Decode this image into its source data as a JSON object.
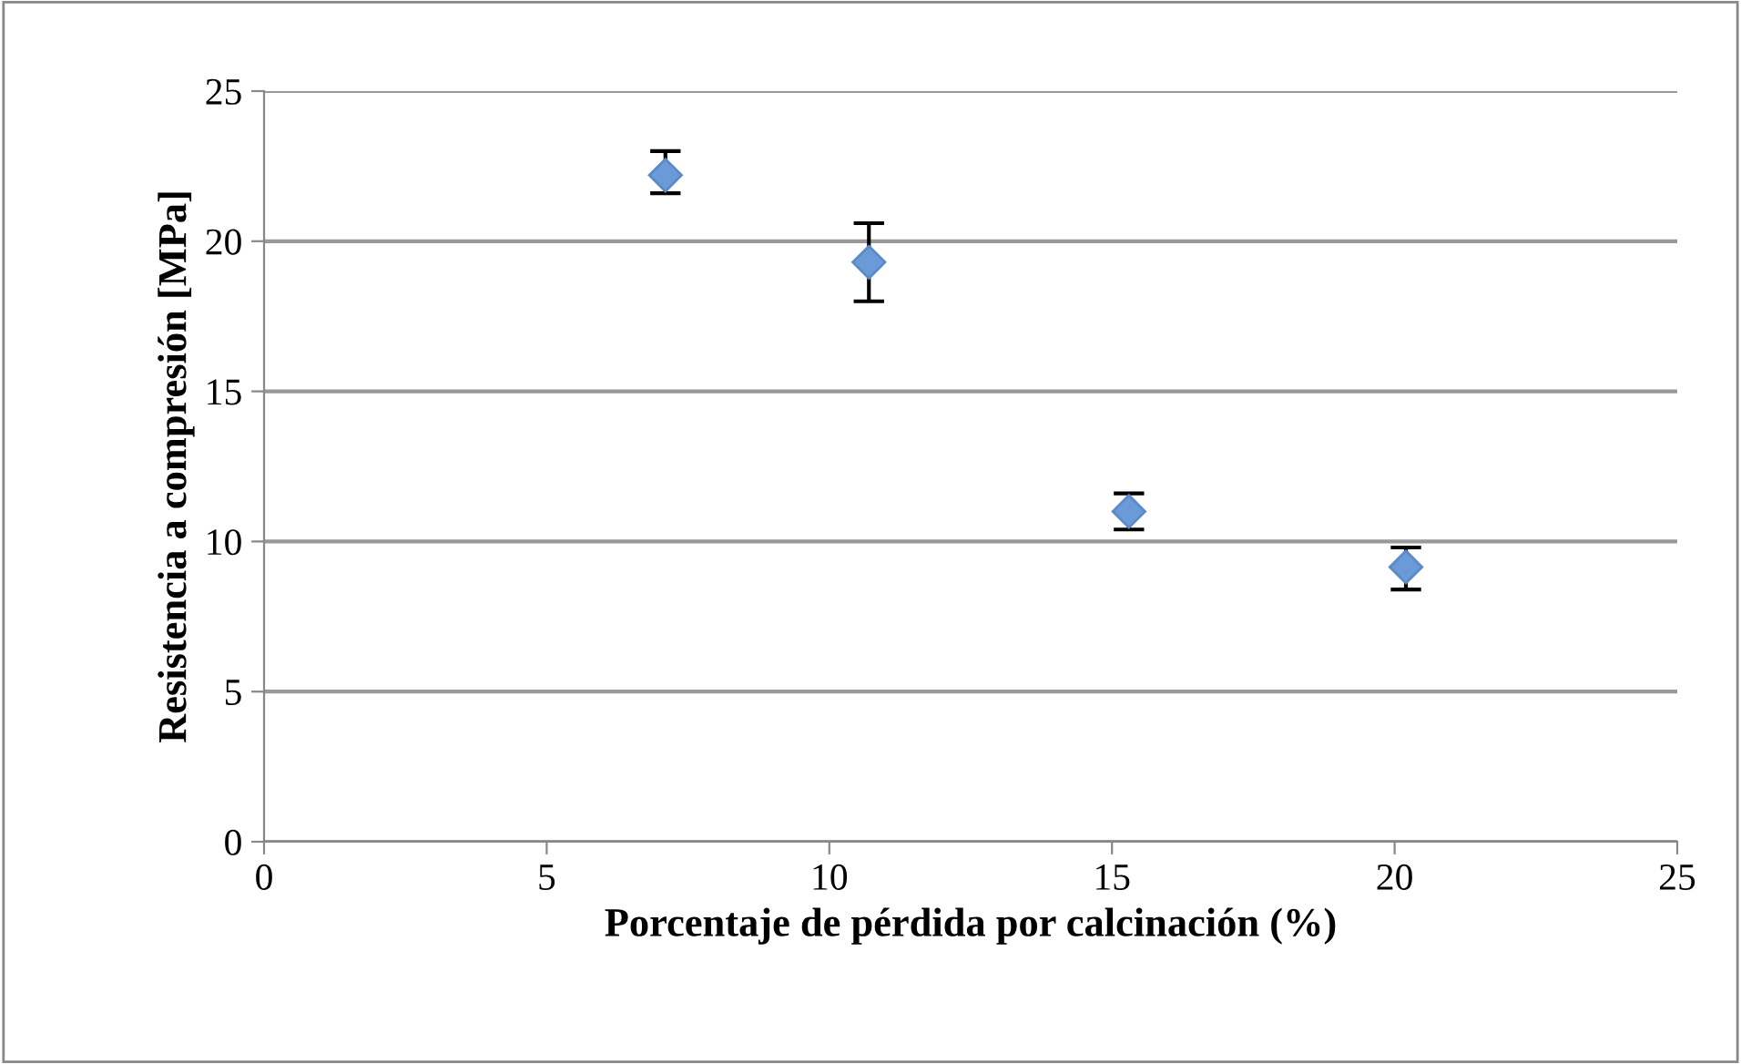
{
  "chart_data": {
    "type": "scatter",
    "xlabel": "Porcentaje de pérdida por calcinación (%)",
    "ylabel": "Resistencia a compresión [MPa]",
    "x": [
      7.1,
      10.7,
      15.3,
      20.2
    ],
    "series": [
      {
        "color": "#6a9bd8",
        "values": [
          22.2,
          19.3,
          11.0,
          9.15
        ],
        "errors": [
          [
            21.6,
            23.0
          ],
          [
            18.0,
            20.6
          ],
          [
            10.4,
            11.6
          ],
          [
            8.4,
            9.8
          ]
        ]
      }
    ],
    "xlim": [
      0,
      25
    ],
    "xticks": [
      0,
      5,
      10,
      15,
      20,
      25
    ],
    "ylim": [
      0,
      25
    ],
    "yticks": [
      0,
      5,
      10,
      15,
      20,
      25
    ],
    "grid": "y",
    "marker": "diamond",
    "legend": false
  }
}
